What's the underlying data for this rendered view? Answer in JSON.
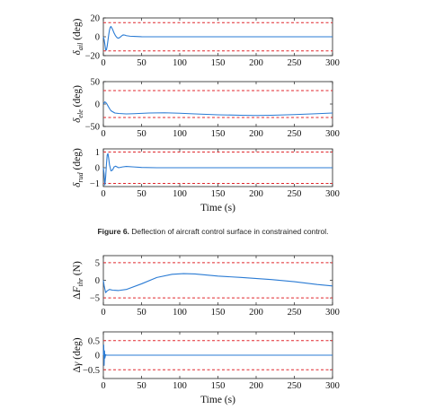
{
  "figure6": {
    "label": "Figure 6.",
    "caption": "Deflection of aircraft control surface in constrained control."
  },
  "chart_data": [
    {
      "type": "line",
      "ylabel_symbol": "δ",
      "ylabel_sub": "ail",
      "ylabel_unit": "(deg)",
      "xlim": [
        0,
        300
      ],
      "ylim": [
        -20,
        20
      ],
      "yticks": [
        -20,
        0,
        20
      ],
      "xticks": [
        0,
        50,
        100,
        150,
        200,
        250,
        300
      ],
      "show_xlabel": false,
      "bounds": [
        15,
        -15
      ],
      "series": [
        {
          "x": [
            0,
            1,
            2,
            3,
            4,
            5,
            6,
            7,
            8,
            9,
            10,
            12,
            14,
            16,
            18,
            20,
            22,
            24,
            26,
            28,
            30,
            35,
            40,
            50,
            60,
            80,
            120,
            200,
            300
          ],
          "y": [
            0,
            -3,
            -8,
            -14,
            -14,
            -10,
            -4,
            2,
            7,
            10,
            11,
            8,
            4,
            1,
            -1,
            -1.5,
            -0.5,
            1,
            2,
            1.8,
            1.2,
            0.6,
            0.4,
            0.1,
            0,
            0,
            0,
            0,
            0
          ]
        }
      ]
    },
    {
      "type": "line",
      "ylabel_symbol": "δ",
      "ylabel_sub": "ele",
      "ylabel_unit": "(deg)",
      "xlim": [
        0,
        300
      ],
      "ylim": [
        -50,
        50
      ],
      "yticks": [
        -50,
        0,
        50
      ],
      "xticks": [
        0,
        50,
        100,
        150,
        200,
        250,
        300
      ],
      "show_xlabel": false,
      "bounds": [
        30,
        -30
      ],
      "series": [
        {
          "x": [
            0,
            2,
            4,
            6,
            8,
            10,
            15,
            20,
            30,
            40,
            60,
            80,
            100,
            120,
            150,
            180,
            200,
            220,
            250,
            280,
            300
          ],
          "y": [
            0,
            5,
            2,
            -4,
            -10,
            -15,
            -20,
            -21,
            -22,
            -21.5,
            -20,
            -19.5,
            -20.5,
            -22,
            -24,
            -25,
            -25.5,
            -25,
            -23.5,
            -21.5,
            -20
          ]
        }
      ]
    },
    {
      "type": "line",
      "ylabel_symbol": "δ",
      "ylabel_sub": "rud",
      "ylabel_unit": "(deg)",
      "xlim": [
        0,
        300
      ],
      "ylim": [
        -1.2,
        1.2
      ],
      "yticks": [
        -1,
        0,
        1
      ],
      "xticks": [
        0,
        50,
        100,
        150,
        200,
        250,
        300
      ],
      "show_xlabel": true,
      "xlabel": "Time (s)",
      "bounds": [
        1,
        -1
      ],
      "series": [
        {
          "x": [
            0,
            1,
            2,
            3,
            4,
            5,
            6,
            7,
            8,
            10,
            12,
            14,
            16,
            18,
            20,
            25,
            30,
            40,
            50,
            70,
            100,
            200,
            300
          ],
          "y": [
            0,
            -0.4,
            -1.1,
            -0.6,
            0.2,
            0.8,
            0.9,
            0.6,
            0.2,
            -0.2,
            -0.15,
            0.05,
            0.1,
            0.05,
            0,
            0.05,
            0.08,
            0.05,
            0.02,
            0,
            0,
            0,
            0
          ]
        }
      ]
    },
    {
      "type": "line",
      "ylabel_prefix": "Δ",
      "ylabel_symbol": "F",
      "ylabel_sub": "thr",
      "ylabel_unit": "(N)",
      "xlim": [
        0,
        300
      ],
      "ylim": [
        -7,
        7
      ],
      "yticks": [
        -5,
        0,
        5
      ],
      "xticks": [
        0,
        50,
        100,
        150,
        200,
        250,
        300
      ],
      "show_xlabel": false,
      "bounds": [
        5,
        -5
      ],
      "series": [
        {
          "x": [
            0,
            1,
            2,
            3,
            5,
            8,
            12,
            20,
            30,
            50,
            70,
            90,
            105,
            120,
            150,
            180,
            220,
            250,
            280,
            300
          ],
          "y": [
            0,
            -1.5,
            -2.5,
            -3.5,
            -3,
            -2.6,
            -2.8,
            -2.9,
            -2.6,
            -1,
            0.8,
            1.7,
            1.9,
            1.8,
            1.2,
            0.8,
            0.2,
            -0.4,
            -1.2,
            -1.6
          ]
        }
      ]
    },
    {
      "type": "line",
      "ylabel_prefix": "Δ",
      "ylabel_symbol": "γ",
      "ylabel_sub": "",
      "ylabel_unit": "(deg)",
      "xlim": [
        0,
        300
      ],
      "ylim": [
        -0.8,
        0.8
      ],
      "yticks": [
        -0.5,
        0,
        0.5
      ],
      "xticks": [
        0,
        50,
        100,
        150,
        200,
        250,
        300
      ],
      "show_xlabel": true,
      "xlabel": "Time (s)",
      "bounds": [
        0.5,
        -0.5
      ],
      "series": [
        {
          "x": [
            0,
            0.5,
            1,
            1.5,
            2,
            3,
            4,
            6,
            300
          ],
          "y": [
            0,
            0.35,
            -0.35,
            0.15,
            -0.1,
            0.02,
            0,
            0,
            0
          ]
        }
      ]
    }
  ]
}
